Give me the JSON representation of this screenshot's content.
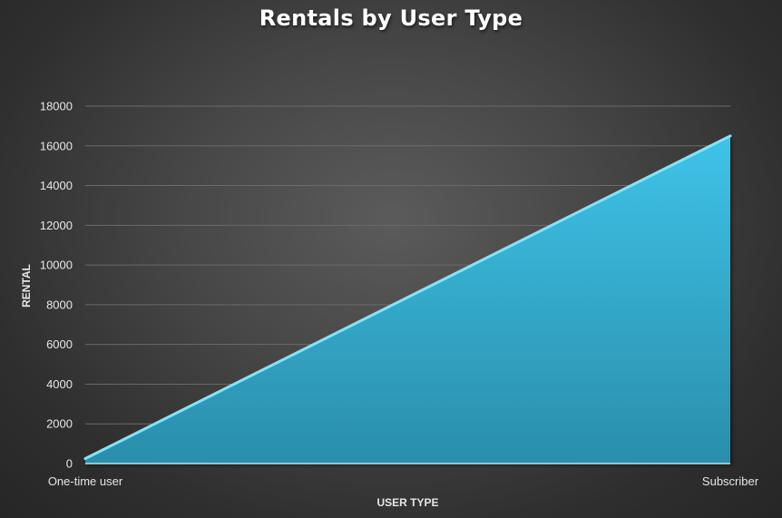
{
  "chart_data": {
    "type": "area",
    "title": "Rentals by User Type",
    "xlabel": "USER TYPE",
    "ylabel": "RENTAL",
    "categories": [
      "One-time user",
      "Subscriber"
    ],
    "series": [
      {
        "values": [
          250,
          16500
        ]
      }
    ],
    "ylim": [
      0,
      18000
    ],
    "yticks": [
      0,
      2000,
      4000,
      6000,
      8000,
      10000,
      12000,
      14000,
      16000,
      18000
    ],
    "grid": true,
    "legend": "none",
    "colors": {
      "area_top": "#3ec3e8",
      "area_bottom": "#2a8eab",
      "area_edge": "#7fe6ff",
      "gridline": "#6a6a6a",
      "text": "#e6e6e6"
    }
  }
}
